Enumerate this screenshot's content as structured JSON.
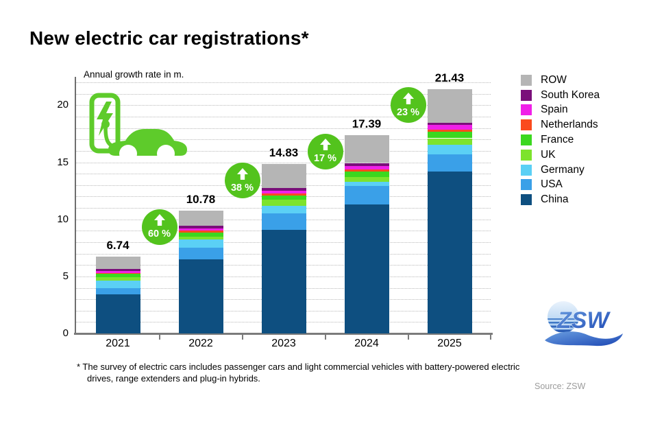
{
  "title": "New electric car registrations*",
  "chart_data": {
    "type": "bar",
    "stacked": true,
    "axis_note": "Annual growth rate in m.",
    "categories": [
      "2021",
      "2022",
      "2023",
      "2024",
      "2025"
    ],
    "series": [
      {
        "name": "China",
        "color": "#0e4f80",
        "values": [
          3.4,
          6.5,
          9.1,
          11.3,
          14.2
        ]
      },
      {
        "name": "USA",
        "color": "#3aa0e8",
        "values": [
          0.58,
          1.0,
          1.4,
          1.6,
          1.5
        ]
      },
      {
        "name": "Germany",
        "color": "#5bd0f5",
        "values": [
          0.65,
          0.72,
          0.67,
          0.4,
          0.85
        ]
      },
      {
        "name": "UK",
        "color": "#7de32d",
        "values": [
          0.3,
          0.28,
          0.55,
          0.4,
          0.55
        ]
      },
      {
        "name": "France",
        "color": "#3bd81f",
        "values": [
          0.28,
          0.35,
          0.36,
          0.48,
          0.55
        ]
      },
      {
        "name": "Netherlands",
        "color": "#fa4b1e",
        "values": [
          0.08,
          0.14,
          0.2,
          0.2,
          0.2
        ]
      },
      {
        "name": "Spain",
        "color": "#f020e8",
        "values": [
          0.2,
          0.22,
          0.24,
          0.32,
          0.4
        ]
      },
      {
        "name": "South Korea",
        "color": "#7a0f7a",
        "values": [
          0.15,
          0.24,
          0.24,
          0.24,
          0.2
        ]
      },
      {
        "name": "ROW",
        "color": "#b5b5b5",
        "values": [
          1.1,
          1.33,
          2.07,
          2.45,
          2.98
        ]
      }
    ],
    "totals": [
      "6.74",
      "10.78",
      "14.83",
      "17.39",
      "21.43"
    ],
    "growth_rates": [
      "60 %",
      "38 %",
      "17 %",
      "23 %"
    ],
    "yticks": [
      0,
      5,
      10,
      15,
      20
    ],
    "ylim": [
      0,
      22
    ],
    "grid": "horizontal dotted, every 1 unit",
    "legend_position": "right",
    "legend_order_top_to_bottom": [
      "ROW",
      "South Korea",
      "Spain",
      "Netherlands",
      "France",
      "UK",
      "Germany",
      "USA",
      "China"
    ]
  },
  "annotations": {
    "badge_color": "#53c31d",
    "icon_color": "#5ecb2b",
    "badge_arrow": "up-arrow"
  },
  "footnote": {
    "line1": "* The survey of electric cars includes passenger cars and light commercial vehicles with battery-powered electric",
    "line2": "drives, range extenders and plug-in hybrids."
  },
  "source": "Source: ZSW",
  "logo": {
    "text": "ZSW"
  }
}
